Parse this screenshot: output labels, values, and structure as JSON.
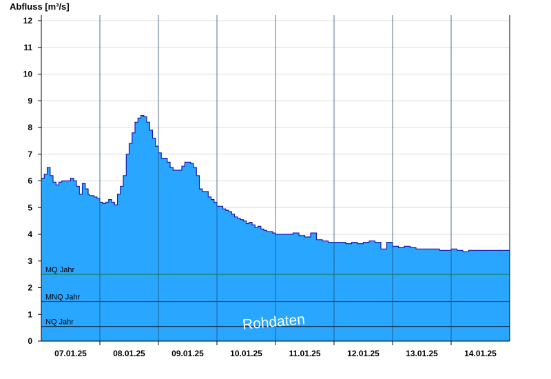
{
  "chart_data": {
    "type": "area",
    "ylabel": "Abfluss [m³/s]",
    "xlabel": "",
    "ylim": [
      0,
      12.2
    ],
    "yticks": [
      0,
      1,
      2,
      3,
      4,
      5,
      6,
      7,
      8,
      9,
      10,
      11,
      12
    ],
    "xlim": [
      0,
      8
    ],
    "day_boundaries": [
      1,
      2,
      3,
      4,
      5,
      6,
      7
    ],
    "x_tick_labels": [
      {
        "x": 0.5,
        "label": "07.01.25"
      },
      {
        "x": 1.5,
        "label": "08.01.25"
      },
      {
        "x": 2.5,
        "label": "09.01.25"
      },
      {
        "x": 3.5,
        "label": "10.01.25"
      },
      {
        "x": 4.5,
        "label": "11.01.25"
      },
      {
        "x": 5.5,
        "label": "12.01.25"
      },
      {
        "x": 6.5,
        "label": "13.01.25"
      },
      {
        "x": 7.5,
        "label": "14.01.25"
      }
    ],
    "series": [
      {
        "x": [
          0,
          0.05,
          0.1,
          0.15,
          0.2,
          0.25,
          0.3,
          0.35,
          0.4,
          0.5,
          0.55,
          0.6,
          0.65,
          0.7,
          0.75,
          0.8,
          0.82,
          0.85,
          0.9,
          0.95,
          1,
          1.05,
          1.1,
          1.15,
          1.2,
          1.25,
          1.3,
          1.35,
          1.4,
          1.45,
          1.5,
          1.55,
          1.6,
          1.65,
          1.7,
          1.75,
          1.8,
          1.85,
          1.9,
          1.95,
          2,
          2.05,
          2.1,
          2.15,
          2.2,
          2.25,
          2.3,
          2.35,
          2.4,
          2.45,
          2.5,
          2.55,
          2.6,
          2.65,
          2.7,
          2.75,
          2.8,
          2.85,
          2.9,
          2.95,
          3,
          3.05,
          3.1,
          3.15,
          3.2,
          3.25,
          3.3,
          3.35,
          3.4,
          3.45,
          3.5,
          3.55,
          3.6,
          3.65,
          3.7,
          3.75,
          3.8,
          3.85,
          3.9,
          3.95,
          4,
          4.1,
          4.2,
          4.3,
          4.4,
          4.5,
          4.6,
          4.7,
          4.8,
          4.9,
          5,
          5.1,
          5.2,
          5.3,
          5.4,
          5.5,
          5.6,
          5.7,
          5.8,
          5.9,
          6,
          6.1,
          6.2,
          6.3,
          6.4,
          6.5,
          6.55,
          6.6,
          6.7,
          6.8,
          6.9,
          7,
          7.1,
          7.2,
          7.3,
          7.4,
          7.5,
          7.6,
          7.7,
          7.8,
          7.9,
          8
        ],
        "values": [
          6.1,
          6.25,
          6.5,
          6.2,
          5.95,
          5.85,
          5.95,
          6.0,
          6.0,
          6.1,
          6.0,
          5.8,
          5.5,
          5.9,
          5.7,
          5.5,
          5.45,
          5.45,
          5.4,
          5.35,
          5.2,
          5.15,
          5.2,
          5.3,
          5.2,
          5.1,
          5.5,
          5.8,
          6.2,
          7.0,
          7.4,
          7.8,
          8.2,
          8.35,
          8.45,
          8.4,
          8.2,
          7.9,
          7.6,
          7.3,
          7.05,
          6.85,
          6.85,
          6.7,
          6.5,
          6.4,
          6.4,
          6.4,
          6.55,
          6.7,
          6.7,
          6.65,
          6.5,
          6.2,
          5.7,
          5.6,
          5.6,
          5.4,
          5.3,
          5.2,
          5.05,
          5.05,
          4.95,
          4.9,
          4.85,
          4.75,
          4.65,
          4.6,
          4.55,
          4.5,
          4.4,
          4.45,
          4.35,
          4.25,
          4.3,
          4.2,
          4.15,
          4.1,
          4.1,
          4.05,
          4.0,
          4.0,
          4.0,
          4.05,
          3.95,
          3.9,
          4.05,
          3.8,
          3.75,
          3.7,
          3.7,
          3.7,
          3.65,
          3.7,
          3.65,
          3.7,
          3.75,
          3.7,
          3.45,
          3.7,
          3.55,
          3.5,
          3.55,
          3.5,
          3.45,
          3.45,
          3.45,
          3.45,
          3.45,
          3.4,
          3.4,
          3.45,
          3.4,
          3.35,
          3.4,
          3.4,
          3.4,
          3.4,
          3.4,
          3.4,
          3.4,
          3.4
        ],
        "fill_color": "#29a6ff",
        "line_color": "#1a1aa8"
      }
    ],
    "reference_lines": [
      {
        "label": "MQ Jahr",
        "value": 2.5,
        "color": "#1a7a3a"
      },
      {
        "label": "MNQ Jahr",
        "value": 1.48,
        "color": "#333333"
      },
      {
        "label": "NQ Jahr",
        "value": 0.55,
        "color": "#000000"
      }
    ],
    "watermark": "Rohdaten",
    "grid": true
  }
}
